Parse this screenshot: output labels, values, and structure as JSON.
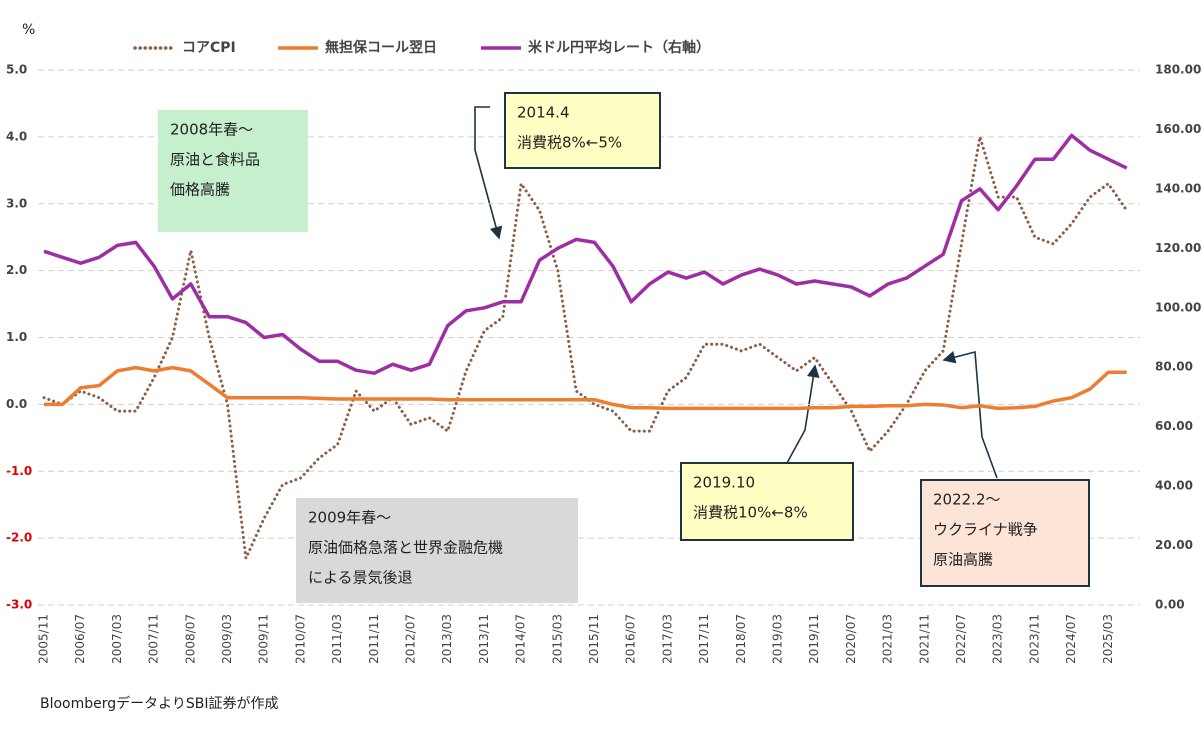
{
  "chart_data": {
    "type": "line",
    "y_label": "%",
    "source": "BloombergデータよりSBI証券が作成",
    "categories": [
      "2005/11",
      null,
      "2006/07",
      null,
      "2007/03",
      null,
      "2007/11",
      null,
      "2008/07",
      null,
      "2009/03",
      null,
      "2009/11",
      null,
      "2010/07",
      null,
      "2011/03",
      null,
      "2011/11",
      null,
      "2012/07",
      null,
      "2013/03",
      null,
      "2013/11",
      null,
      "2014/07",
      null,
      "2015/03",
      null,
      "2015/11",
      null,
      "2016/07",
      null,
      "2017/03",
      null,
      "2017/11",
      null,
      "2018/07",
      null,
      "2019/03",
      null,
      "2019/11",
      null,
      "2020/07",
      null,
      "2021/03",
      null,
      "2021/11",
      null,
      "2022/07",
      null,
      "2023/03",
      null,
      "2023/11",
      null,
      "2024/07",
      null,
      "2025/03",
      null
    ],
    "series": [
      {
        "name": "コアCPI",
        "color": "#8c5e45",
        "style": "dotted",
        "values": [
          0.1,
          0.0,
          0.2,
          0.1,
          -0.1,
          -0.1,
          0.4,
          1.0,
          2.3,
          1.0,
          0.0,
          -2.3,
          -1.7,
          -1.2,
          -1.1,
          -0.8,
          -0.6,
          0.2,
          -0.1,
          0.1,
          -0.3,
          -0.2,
          -0.4,
          0.5,
          1.1,
          1.3,
          3.3,
          2.9,
          2.0,
          0.2,
          0.0,
          -0.1,
          -0.4,
          -0.4,
          0.2,
          0.4,
          0.9,
          0.9,
          0.8,
          0.9,
          0.7,
          0.5,
          0.7,
          0.3,
          -0.1,
          -0.7,
          -0.4,
          0.0,
          0.5,
          0.8,
          2.4,
          4.0,
          3.1,
          3.1,
          2.5,
          2.4,
          2.7,
          3.1,
          3.3,
          2.9
        ]
      },
      {
        "name": "無担保コール翌日",
        "color": "#ed7d31",
        "style": "solid",
        "values": [
          0.0,
          0.0,
          0.25,
          0.28,
          0.5,
          0.55,
          0.5,
          0.55,
          0.5,
          0.3,
          0.1,
          0.1,
          0.1,
          0.1,
          0.1,
          0.09,
          0.08,
          0.08,
          0.08,
          0.08,
          0.08,
          0.08,
          0.07,
          0.07,
          0.07,
          0.07,
          0.07,
          0.07,
          0.07,
          0.07,
          0.07,
          0.0,
          -0.05,
          -0.05,
          -0.06,
          -0.06,
          -0.06,
          -0.06,
          -0.06,
          -0.06,
          -0.06,
          -0.06,
          -0.05,
          -0.05,
          -0.03,
          -0.03,
          -0.02,
          -0.02,
          0.0,
          -0.01,
          -0.05,
          -0.02,
          -0.06,
          -0.05,
          -0.03,
          0.05,
          0.1,
          0.23,
          0.48,
          0.48
        ]
      },
      {
        "name": "米ドル円平均レート（右軸）",
        "color": "#9e2ea3",
        "style": "solid",
        "axis": "y2",
        "values": [
          119,
          117,
          115,
          117,
          121,
          122,
          114,
          103,
          108,
          97,
          97,
          95,
          90,
          91,
          86,
          82,
          82,
          79,
          78,
          81,
          79,
          81,
          94,
          99,
          100,
          102,
          102,
          116,
          120,
          123,
          122,
          114,
          102,
          108,
          112,
          110,
          112,
          108,
          111,
          113,
          111,
          108,
          109,
          108,
          107,
          104,
          108,
          110,
          114,
          118,
          136,
          140,
          133,
          141,
          150,
          150,
          158,
          153,
          150,
          147
        ]
      }
    ],
    "ylim": [
      -3,
      5
    ],
    "yticks": [
      {
        "value": -3,
        "label": "-3.0"
      },
      {
        "value": -2,
        "label": "-2.0"
      },
      {
        "value": -1,
        "label": "-1.0"
      },
      {
        "value": 0,
        "label": "0.0"
      },
      {
        "value": 1,
        "label": "1.0"
      },
      {
        "value": 2,
        "label": "2.0"
      },
      {
        "value": 3,
        "label": "3.0"
      },
      {
        "value": 4,
        "label": "4.0"
      },
      {
        "value": 5,
        "label": "5.0"
      }
    ],
    "y2lim": [
      0,
      180
    ],
    "y2ticks": [
      {
        "value": 0,
        "label": "0.00"
      },
      {
        "value": 20,
        "label": "20.00"
      },
      {
        "value": 40,
        "label": "40.00"
      },
      {
        "value": 60,
        "label": "60.00"
      },
      {
        "value": 80,
        "label": "80.00"
      },
      {
        "value": 100,
        "label": "100.00"
      },
      {
        "value": 120,
        "label": "120.00"
      },
      {
        "value": 140,
        "label": "140.00"
      },
      {
        "value": 160,
        "label": "160.00"
      },
      {
        "value": 180,
        "label": "180.00"
      }
    ],
    "negative_tick_color": "#e00000",
    "grid": true,
    "legend": "top",
    "annotations": [
      {
        "lines": [
          "2008年春～",
          "原油と食料品",
          "価格高騰"
        ],
        "color": "#c6efce"
      },
      {
        "lines": [
          "2014.4",
          "消費税8%←5%"
        ],
        "color": "#ffffc4"
      },
      {
        "lines": [
          "2009年春～",
          "原油価格急落と世界金融危機",
          "による景気後退"
        ],
        "color": "#d9d9d9"
      },
      {
        "lines": [
          "2019.10",
          "消費税10%←8%"
        ],
        "color": "#ffffc4"
      },
      {
        "lines": [
          "2022.2～",
          "ウクライナ戦争",
          "原油高騰"
        ],
        "color": "#fce4d6"
      }
    ]
  }
}
